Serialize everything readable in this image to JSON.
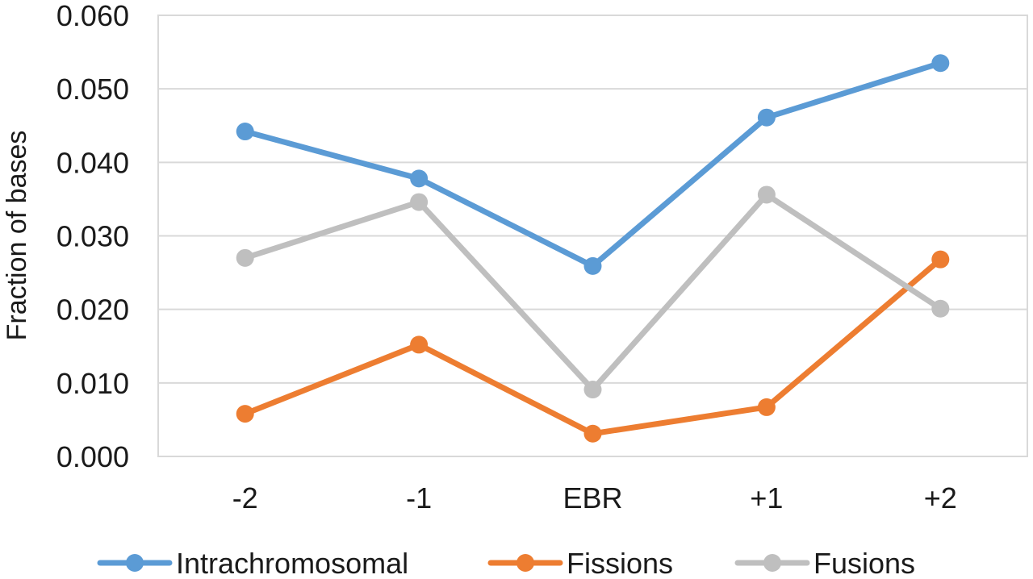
{
  "chart_data": {
    "type": "line",
    "categories": [
      "-2",
      "-1",
      "EBR",
      "+1",
      "+2"
    ],
    "series": [
      {
        "name": "Intrachromosomal",
        "color": "#5b9bd5",
        "values": [
          0.0442,
          0.0378,
          0.0259,
          0.0461,
          0.0535
        ]
      },
      {
        "name": "Fissions",
        "color": "#ed7d31",
        "values": [
          0.0058,
          0.0152,
          0.0031,
          0.0067,
          0.0268
        ]
      },
      {
        "name": "Fusions",
        "color": "#bfbfbf",
        "values": [
          0.027,
          0.0346,
          0.0091,
          0.0356,
          0.0201
        ]
      }
    ],
    "title": "",
    "xlabel": "",
    "ylabel": "Fraction of bases",
    "ylim": [
      0,
      0.06
    ],
    "yticks": [
      "0.000",
      "0.010",
      "0.020",
      "0.030",
      "0.040",
      "0.050",
      "0.060"
    ],
    "grid": "horizontal",
    "legend": "bottom"
  }
}
